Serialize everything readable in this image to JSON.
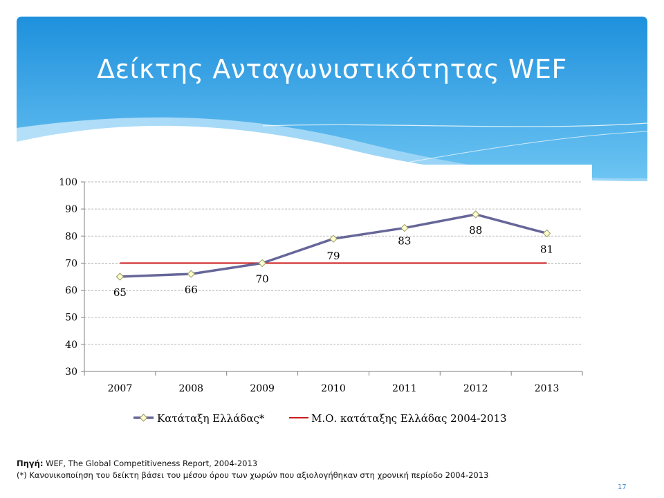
{
  "slide": {
    "title": "Δείκτης Ανταγωνιστικότητας WEF",
    "source_label": "Πηγή:",
    "source_text": " WEF, The Global Competitiveness Report, 2004-2013",
    "note": "(*) Κανονικοποίηση του δείκτη βάσει του μέσου όρου των χωρών που αξιολογήθηκαν στη χρονική περίοδο 2004-2013",
    "page_number": "17"
  },
  "colors": {
    "header_top": "#1e90dc",
    "header_bottom": "#6cc4f2",
    "series_line": "#666699",
    "marker_fill": "#ffffcc",
    "average_line": "#cc1a1a",
    "gridline": "#a0a0a0"
  },
  "chart_data": {
    "type": "line",
    "title": "",
    "xlabel": "",
    "ylabel": "",
    "categories": [
      "2007",
      "2008",
      "2009",
      "2010",
      "2011",
      "2012",
      "2013"
    ],
    "ylim": [
      30,
      100
    ],
    "yticks": [
      30,
      40,
      50,
      60,
      70,
      80,
      90,
      100
    ],
    "grid": true,
    "legend_position": "bottom",
    "series": [
      {
        "name": "Κατάταξη Ελλάδας*",
        "values": [
          65,
          66,
          70,
          79,
          83,
          88,
          81
        ],
        "labels": [
          "65",
          "66",
          "70",
          "79",
          "83",
          "88",
          "81"
        ],
        "marker": "diamond"
      },
      {
        "name": "Μ.Ο. κατάταξης Ελλάδας 2004-2013",
        "values": [
          70,
          70,
          70,
          70,
          70,
          70,
          70
        ]
      }
    ]
  }
}
